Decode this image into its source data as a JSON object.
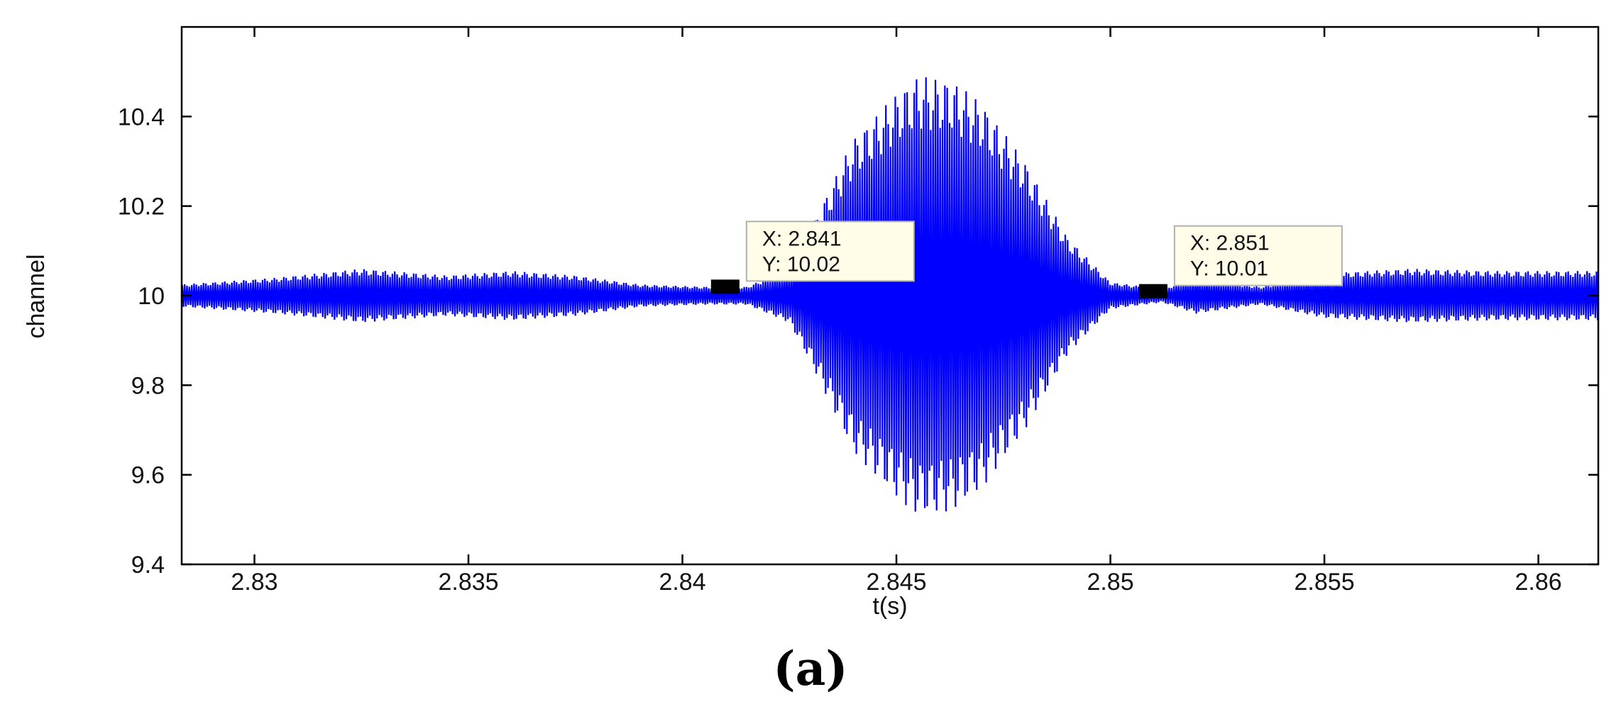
{
  "caption": "(a)",
  "colors": {
    "signal": "#0000ff",
    "axes": "#000000",
    "datatip_bg": "#fffde8",
    "datatip_border": "#b0b0b0"
  },
  "chart_data": {
    "type": "line",
    "title": "",
    "xlabel": "t(s)",
    "ylabel": "channel",
    "xlim": [
      2.8283,
      2.8614
    ],
    "ylim": [
      9.4,
      10.6
    ],
    "xticks": [
      2.83,
      2.835,
      2.84,
      2.845,
      2.85,
      2.855,
      2.86
    ],
    "xtick_labels": [
      "2.83",
      "2.835",
      "2.84",
      "2.845",
      "2.85",
      "2.855",
      "2.86"
    ],
    "yticks": [
      9.4,
      9.6,
      9.8,
      10,
      10.2,
      10.4
    ],
    "ytick_labels": [
      "9.4",
      "9.6",
      "9.8",
      "10",
      "10.2",
      "10.4"
    ],
    "grid": false,
    "series": [
      {
        "baseline": 10.0,
        "envelope": [
          {
            "t": 2.8283,
            "amp": 0.025
          },
          {
            "t": 2.8305,
            "amp": 0.04
          },
          {
            "t": 2.8325,
            "amp": 0.06
          },
          {
            "t": 2.8345,
            "amp": 0.045
          },
          {
            "t": 2.836,
            "amp": 0.055
          },
          {
            "t": 2.8375,
            "amp": 0.045
          },
          {
            "t": 2.839,
            "amp": 0.025
          },
          {
            "t": 2.8405,
            "amp": 0.02
          },
          {
            "t": 2.8415,
            "amp": 0.02
          },
          {
            "t": 2.8425,
            "amp": 0.06
          },
          {
            "t": 2.843,
            "amp": 0.15
          },
          {
            "t": 2.8435,
            "amp": 0.25
          },
          {
            "t": 2.844,
            "amp": 0.35
          },
          {
            "t": 2.845,
            "amp": 0.45
          },
          {
            "t": 2.8455,
            "amp": 0.49
          },
          {
            "t": 2.8463,
            "amp": 0.48
          },
          {
            "t": 2.847,
            "amp": 0.43
          },
          {
            "t": 2.848,
            "amp": 0.3
          },
          {
            "t": 2.849,
            "amp": 0.13
          },
          {
            "t": 2.85,
            "amp": 0.03
          },
          {
            "t": 2.8512,
            "amp": 0.015
          },
          {
            "t": 2.852,
            "amp": 0.04
          },
          {
            "t": 2.8535,
            "amp": 0.02
          },
          {
            "t": 2.855,
            "amp": 0.05
          },
          {
            "t": 2.857,
            "amp": 0.06
          },
          {
            "t": 2.859,
            "amp": 0.055
          },
          {
            "t": 2.8614,
            "amp": 0.055
          }
        ]
      }
    ],
    "datatips": [
      {
        "x": 2.841,
        "y": 10.02,
        "x_text": "X: 2.841",
        "y_text": "Y: 10.02"
      },
      {
        "x": 2.851,
        "y": 10.01,
        "x_text": "X: 2.851",
        "y_text": "Y: 10.01"
      }
    ]
  }
}
